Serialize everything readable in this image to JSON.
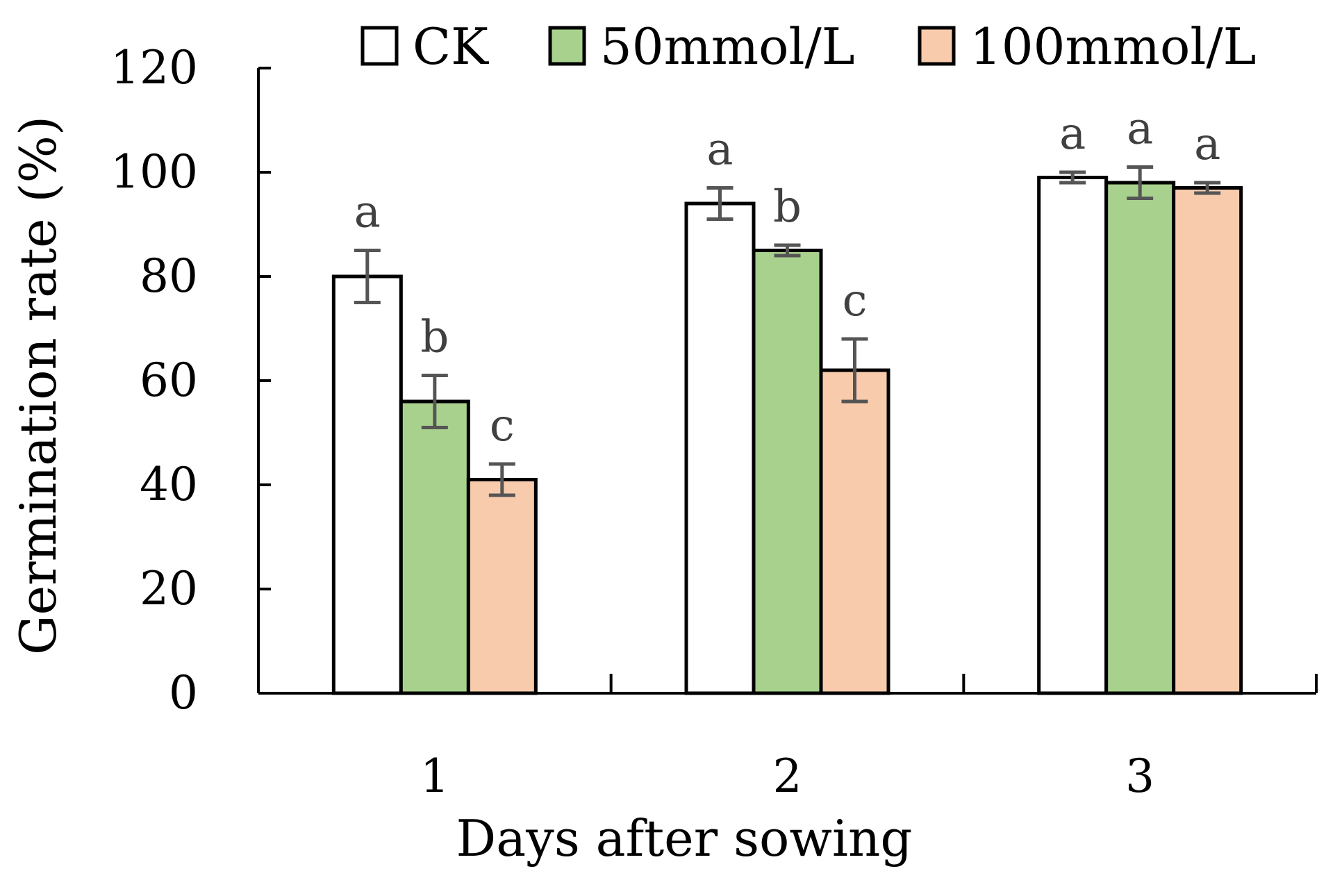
{
  "chart_data": {
    "type": "bar",
    "xlabel": "Days after sowing",
    "ylabel": "Germination rate (%)",
    "ylim": [
      0,
      120
    ],
    "yticks": [
      0,
      20,
      40,
      60,
      80,
      100,
      120
    ],
    "categories": [
      "1",
      "2",
      "3"
    ],
    "legend_position": "top",
    "grid": false,
    "series": [
      {
        "name": "CK",
        "color": "#ffffff",
        "values": [
          80,
          94,
          99
        ],
        "errors": [
          5,
          3,
          1
        ],
        "significance": [
          "a",
          "a",
          "a"
        ]
      },
      {
        "name": "50mmol/L",
        "color": "#a9d18e",
        "values": [
          56,
          85,
          98
        ],
        "errors": [
          5,
          1,
          3
        ],
        "significance": [
          "b",
          "b",
          "a"
        ]
      },
      {
        "name": "100mmol/L",
        "color": "#f8cbad",
        "values": [
          41,
          62,
          97
        ],
        "errors": [
          3,
          6,
          1
        ],
        "significance": [
          "c",
          "c",
          "a"
        ]
      }
    ]
  }
}
